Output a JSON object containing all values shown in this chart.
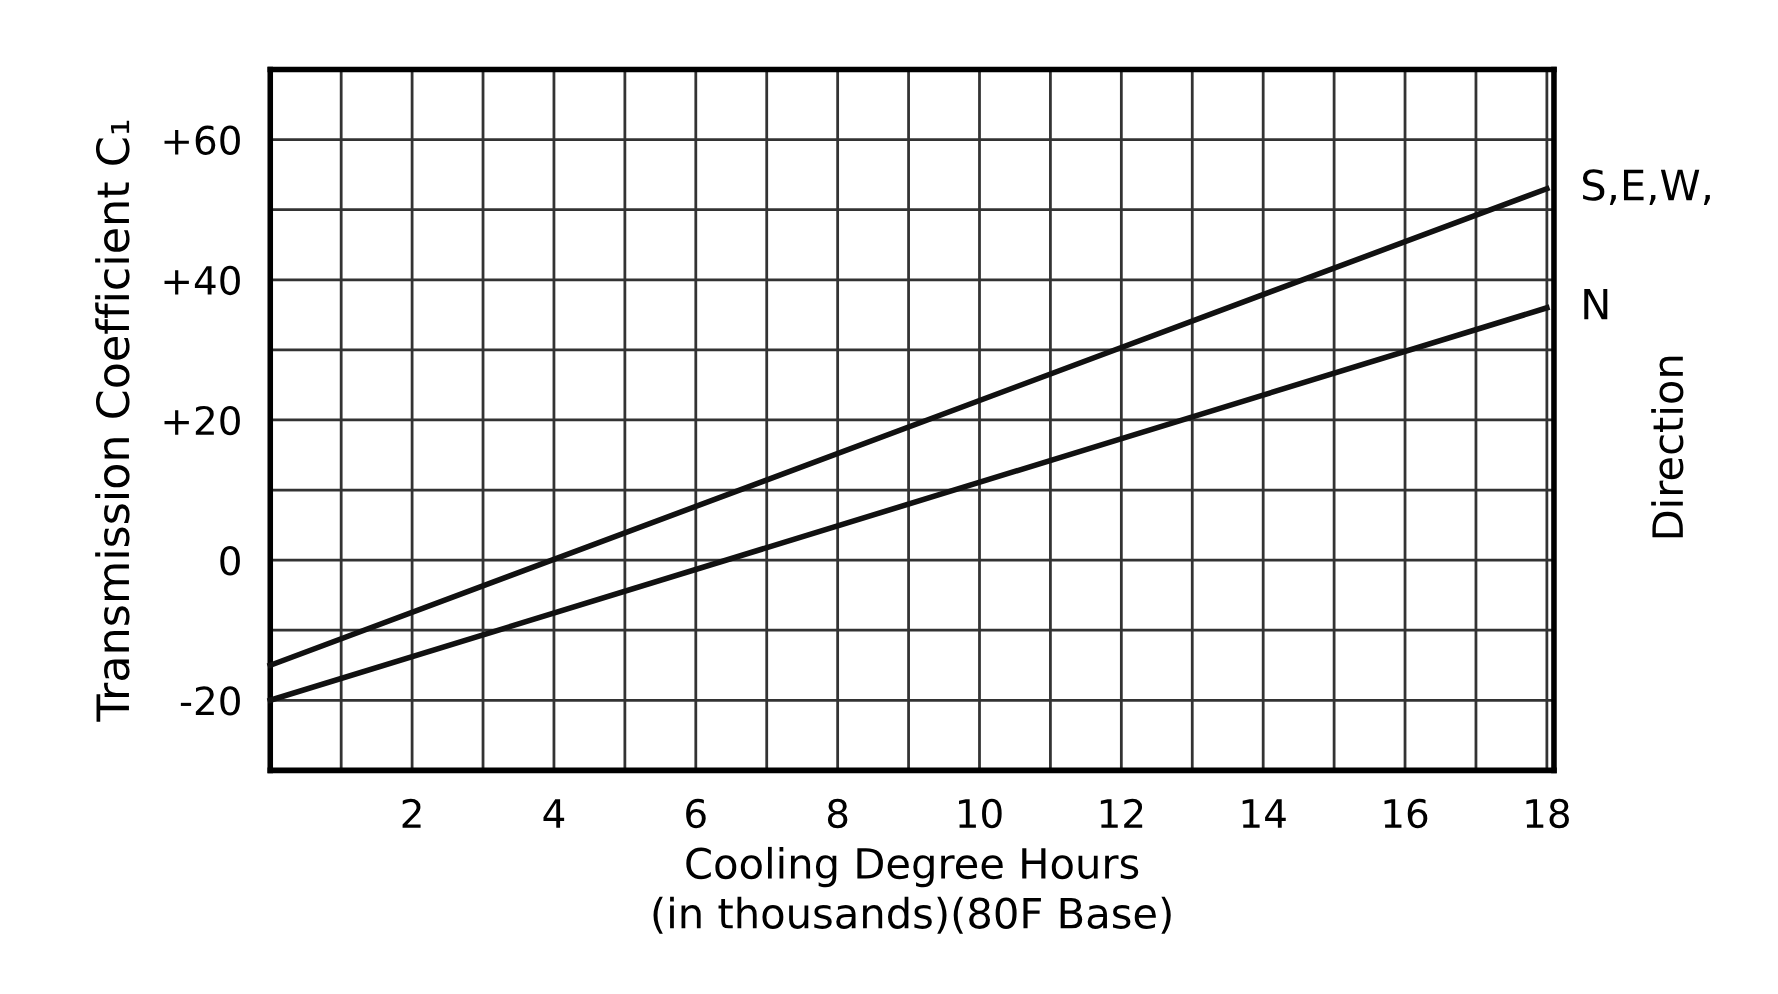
{
  "chart_data": {
    "type": "line",
    "xlabel": "Cooling Degree Hours\n(in thousands)(80F Base)",
    "ylabel": "Transmission Coefficient C₁",
    "annotations": [
      "Direction"
    ],
    "series": [
      {
        "name": "S,E,W,",
        "color": "#111111",
        "values": [
          -15,
          53
        ]
      },
      {
        "name": "N",
        "color": "#111111",
        "values": [
          -20,
          36
        ]
      }
    ],
    "x": [
      0,
      18
    ],
    "xlim": [
      0,
      18.1
    ],
    "ylim": [
      -30,
      70
    ],
    "xticks": [
      {
        "value": 1,
        "label": null
      },
      2,
      {
        "value": 3,
        "label": null
      },
      4,
      {
        "value": 5,
        "label": null
      },
      6,
      {
        "value": 7,
        "label": null
      },
      8,
      {
        "value": 9,
        "label": null
      },
      10,
      {
        "value": 11,
        "label": null
      },
      12,
      {
        "value": 13,
        "label": null
      },
      14,
      {
        "value": 15,
        "label": null
      },
      16,
      {
        "value": 17,
        "label": null
      },
      18
    ],
    "yticks": [
      {
        "value": -20,
        "label": "-20"
      },
      {
        "value": -10,
        "label": null
      },
      0,
      {
        "value": 10,
        "label": null
      },
      {
        "value": 20,
        "label": "+20"
      },
      {
        "value": 30,
        "label": null
      },
      {
        "value": 40,
        "label": "+40"
      },
      {
        "value": 50,
        "label": null
      },
      {
        "value": 60,
        "label": "+60"
      }
    ],
    "grid": true,
    "legend": false,
    "line_style": "solid",
    "marker": "none"
  }
}
